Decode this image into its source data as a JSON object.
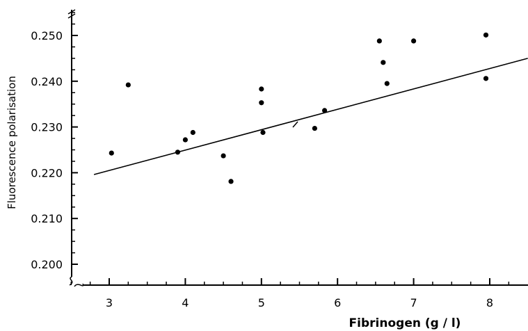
{
  "chart_data": {
    "type": "scatter",
    "title": "",
    "xlabel": "Fibrinogen (g / l)",
    "ylabel": "Fluorescence polarisation",
    "xlim": [
      2.5,
      8.5
    ],
    "ylim": [
      0.195,
      0.255
    ],
    "x_ticks": [
      3,
      4,
      5,
      6,
      7,
      8
    ],
    "x_tick_labels": [
      "3",
      "4",
      "5",
      "6",
      "7",
      "8"
    ],
    "y_ticks": [
      0.2,
      0.21,
      0.22,
      0.23,
      0.24,
      0.25
    ],
    "y_tick_labels": [
      "0.200",
      "0.210",
      "0.220",
      "0.230",
      "0.240",
      "0.250"
    ],
    "grid": false,
    "legend": "none",
    "points": [
      {
        "x": 3.03,
        "y": 0.2243
      },
      {
        "x": 3.25,
        "y": 0.2392
      },
      {
        "x": 3.9,
        "y": 0.2245
      },
      {
        "x": 4.0,
        "y": 0.2272
      },
      {
        "x": 4.1,
        "y": 0.2288
      },
      {
        "x": 4.5,
        "y": 0.2237
      },
      {
        "x": 4.6,
        "y": 0.2181
      },
      {
        "x": 5.0,
        "y": 0.2383
      },
      {
        "x": 5.0,
        "y": 0.2353
      },
      {
        "x": 5.02,
        "y": 0.2288
      },
      {
        "x": 5.7,
        "y": 0.2297
      },
      {
        "x": 5.83,
        "y": 0.2336
      },
      {
        "x": 6.55,
        "y": 0.2488
      },
      {
        "x": 6.6,
        "y": 0.2441
      },
      {
        "x": 6.65,
        "y": 0.2395
      },
      {
        "x": 7.0,
        "y": 0.2488
      },
      {
        "x": 7.95,
        "y": 0.2501
      },
      {
        "x": 7.95,
        "y": 0.2406
      }
    ],
    "regression_line": {
      "x": [
        2.8,
        8.5
      ],
      "y": [
        0.2196,
        0.245
      ]
    },
    "axis_breaks": true
  }
}
